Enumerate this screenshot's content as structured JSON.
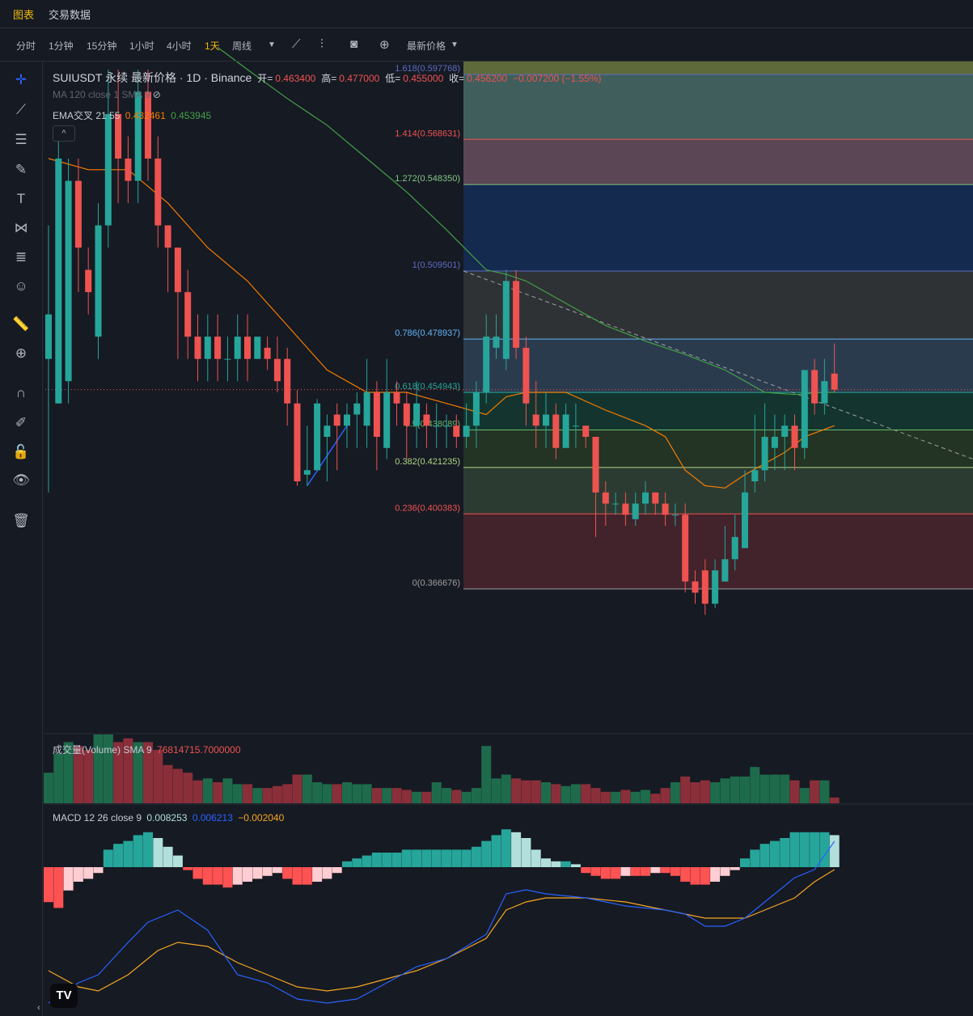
{
  "nav": {
    "tabs": [
      {
        "label": "图表",
        "active": true
      },
      {
        "label": "交易数据",
        "active": false
      }
    ]
  },
  "toolbar": {
    "timeframes": [
      "分时",
      "1分钟",
      "15分钟",
      "1小时",
      "4小时",
      "1天",
      "周线"
    ],
    "active_timeframe": "1天",
    "price_type": "最新价格"
  },
  "sidebar_icons": [
    "crosshair-icon",
    "trend-line-icon",
    "horizontal-lines-icon",
    "brush-icon",
    "text-icon",
    "pattern-icon",
    "fib-icon",
    "emoji-icon",
    "ruler-icon",
    "zoom-in-icon",
    "magnet-icon",
    "lock-drawing-icon",
    "unlock-icon",
    "eye-icon",
    "trash-icon"
  ],
  "legend": {
    "symbol": "SUIUSDT 永续 最新价格 · 1D · Binance",
    "open_label": "开=",
    "open": "0.463400",
    "high_label": "高=",
    "high": "0.477000",
    "low_label": "低=",
    "low": "0.455000",
    "close_label": "收=",
    "close": "0.456200",
    "change": "−0.007200 (−1.55%)",
    "ma_line": "MA 120 close 1 SMA 9",
    "ema_label": "EMA交叉 21 55",
    "ema_fast": "0.432461",
    "ema_slow": "0.453945",
    "volume_label": "成交量(Volume) SMA 9",
    "volume_value": "76814715.7000000",
    "macd_label": "MACD 12 26 close 9",
    "macd_v1": "0.008253",
    "macd_v2": "0.006213",
    "macd_v3": "−0.002040"
  },
  "colors": {
    "up": "#26a69a",
    "down": "#ef5350",
    "ema_fast": "#f57c00",
    "ema_slow": "#43a047",
    "macd": "#2962ff",
    "signal": "#f5a623"
  },
  "chart_data": {
    "type": "candlestick",
    "symbol": "SUIUSDT",
    "interval": "1D",
    "y_range": [
      0.33,
      0.61
    ],
    "fib_levels": [
      {
        "ratio": "1.618",
        "price": 0.597768,
        "label": "1.618(0.597768)",
        "color": "#5c6bc0",
        "fill": "#5f6a3a"
      },
      {
        "ratio": "1.414",
        "price": 0.568631,
        "label": "1.414(0.568631)",
        "color": "#ef5350",
        "fill": "#3f5e5c"
      },
      {
        "ratio": "1.272",
        "price": 0.54835,
        "label": "1.272(0.548350)",
        "color": "#81c784",
        "fill": "#5a4655"
      },
      {
        "ratio": "1",
        "price": 0.509501,
        "label": "1(0.509501)",
        "color": "#5c6bc0",
        "fill": "#142a4e"
      },
      {
        "ratio": "0.786",
        "price": 0.478937,
        "label": "0.786(0.478937)",
        "color": "#64b5f6",
        "fill": "#2f3235"
      },
      {
        "ratio": "0.618",
        "price": 0.454943,
        "label": "0.618(0.454943)",
        "color": "#26a69a",
        "fill": "#2b3b4e"
      },
      {
        "ratio": "0.5",
        "price": 0.438089,
        "label": "0.5(0.438089)",
        "color": "#66bb6a",
        "fill": "#14352f"
      },
      {
        "ratio": "0.382",
        "price": 0.421235,
        "label": "0.382(0.421235)",
        "color": "#aed581",
        "fill": "#233324"
      },
      {
        "ratio": "0.236",
        "price": 0.400383,
        "label": "0.236(0.400383)",
        "color": "#ef5350",
        "fill": "#2c3b32"
      },
      {
        "ratio": "0",
        "price": 0.366676,
        "label": "0(0.366676)",
        "color": "#9e9e9e",
        "fill": "#42232b"
      }
    ],
    "candles": [
      [
        0.47,
        0.49,
        0.41,
        0.53
      ],
      [
        0.45,
        0.56,
        0.45,
        0.57
      ],
      [
        0.46,
        0.55,
        0.45,
        0.56
      ],
      [
        0.55,
        0.52,
        0.5,
        0.56
      ],
      [
        0.51,
        0.5,
        0.49,
        0.52
      ],
      [
        0.48,
        0.53,
        0.47,
        0.54
      ],
      [
        0.53,
        0.58,
        0.52,
        0.6
      ],
      [
        0.58,
        0.56,
        0.54,
        0.6
      ],
      [
        0.56,
        0.55,
        0.54,
        0.57
      ],
      [
        0.55,
        0.59,
        0.54,
        0.6
      ],
      [
        0.59,
        0.56,
        0.55,
        0.6
      ],
      [
        0.56,
        0.53,
        0.52,
        0.57
      ],
      [
        0.53,
        0.52,
        0.5,
        0.53
      ],
      [
        0.52,
        0.5,
        0.47,
        0.52
      ],
      [
        0.5,
        0.48,
        0.47,
        0.51
      ],
      [
        0.48,
        0.47,
        0.46,
        0.49
      ],
      [
        0.47,
        0.48,
        0.46,
        0.49
      ],
      [
        0.48,
        0.47,
        0.46,
        0.49
      ],
      [
        0.47,
        0.47,
        0.46,
        0.48
      ],
      [
        0.47,
        0.48,
        0.46,
        0.49
      ],
      [
        0.48,
        0.47,
        0.46,
        0.49
      ],
      [
        0.47,
        0.48,
        0.47,
        0.48
      ],
      [
        0.475,
        0.47,
        0.465,
        0.48
      ],
      [
        0.47,
        0.46,
        0.455,
        0.48
      ],
      [
        0.47,
        0.45,
        0.44,
        0.475
      ],
      [
        0.45,
        0.415,
        0.413,
        0.456
      ],
      [
        0.418,
        0.42,
        0.413,
        0.44
      ],
      [
        0.42,
        0.45,
        0.42,
        0.452
      ],
      [
        0.435,
        0.44,
        0.415,
        0.445
      ],
      [
        0.445,
        0.44,
        0.42,
        0.45
      ],
      [
        0.44,
        0.445,
        0.43,
        0.45
      ],
      [
        0.445,
        0.45,
        0.43,
        0.455
      ],
      [
        0.44,
        0.455,
        0.43,
        0.47
      ],
      [
        0.455,
        0.435,
        0.42,
        0.46
      ],
      [
        0.43,
        0.455,
        0.425,
        0.47
      ],
      [
        0.455,
        0.45,
        0.44,
        0.46
      ],
      [
        0.45,
        0.44,
        0.425,
        0.455
      ],
      [
        0.44,
        0.45,
        0.43,
        0.46
      ],
      [
        0.445,
        0.44,
        0.43,
        0.45
      ],
      [
        0.44,
        0.44,
        0.43,
        0.45
      ],
      [
        0.44,
        0.44,
        0.43,
        0.445
      ],
      [
        0.44,
        0.435,
        0.43,
        0.445
      ],
      [
        0.435,
        0.44,
        0.43,
        0.45
      ],
      [
        0.44,
        0.455,
        0.43,
        0.46
      ],
      [
        0.455,
        0.48,
        0.45,
        0.49
      ],
      [
        0.475,
        0.48,
        0.47,
        0.49
      ],
      [
        0.47,
        0.505,
        0.465,
        0.51
      ],
      [
        0.505,
        0.475,
        0.47,
        0.51
      ],
      [
        0.475,
        0.45,
        0.44,
        0.48
      ],
      [
        0.445,
        0.44,
        0.43,
        0.46
      ],
      [
        0.44,
        0.445,
        0.43,
        0.455
      ],
      [
        0.445,
        0.43,
        0.425,
        0.45
      ],
      [
        0.43,
        0.445,
        0.43,
        0.45
      ],
      [
        0.44,
        0.44,
        0.43,
        0.45
      ],
      [
        0.44,
        0.435,
        0.43,
        0.44
      ],
      [
        0.435,
        0.41,
        0.39,
        0.435
      ],
      [
        0.41,
        0.405,
        0.395,
        0.415
      ],
      [
        0.405,
        0.405,
        0.4,
        0.41
      ],
      [
        0.405,
        0.4,
        0.395,
        0.41
      ],
      [
        0.398,
        0.405,
        0.395,
        0.41
      ],
      [
        0.405,
        0.41,
        0.4,
        0.415
      ],
      [
        0.41,
        0.405,
        0.4,
        0.41
      ],
      [
        0.405,
        0.4,
        0.395,
        0.41
      ],
      [
        0.4,
        0.4,
        0.395,
        0.405
      ],
      [
        0.4,
        0.37,
        0.365,
        0.405
      ],
      [
        0.37,
        0.365,
        0.36,
        0.375
      ],
      [
        0.375,
        0.36,
        0.355,
        0.38
      ],
      [
        0.36,
        0.375,
        0.358,
        0.38
      ],
      [
        0.37,
        0.38,
        0.37,
        0.395
      ],
      [
        0.38,
        0.39,
        0.375,
        0.4
      ],
      [
        0.385,
        0.41,
        0.385,
        0.42
      ],
      [
        0.415,
        0.42,
        0.41,
        0.445
      ],
      [
        0.42,
        0.435,
        0.415,
        0.45
      ],
      [
        0.43,
        0.435,
        0.42,
        0.445
      ],
      [
        0.435,
        0.44,
        0.42,
        0.445
      ],
      [
        0.44,
        0.43,
        0.42,
        0.445
      ],
      [
        0.43,
        0.465,
        0.425,
        0.465
      ],
      [
        0.465,
        0.45,
        0.445,
        0.47
      ],
      [
        0.45,
        0.46,
        0.445,
        0.47
      ],
      [
        0.4634,
        0.4562,
        0.455,
        0.477
      ]
    ],
    "ema21": [
      [
        0,
        0.56
      ],
      [
        4,
        0.555
      ],
      [
        8,
        0.555
      ],
      [
        12,
        0.54
      ],
      [
        16,
        0.52
      ],
      [
        20,
        0.505
      ],
      [
        24,
        0.485
      ],
      [
        28,
        0.465
      ],
      [
        32,
        0.455
      ],
      [
        36,
        0.455
      ],
      [
        40,
        0.45
      ],
      [
        44,
        0.445
      ],
      [
        46,
        0.453
      ],
      [
        48,
        0.455
      ],
      [
        52,
        0.455
      ],
      [
        56,
        0.447
      ],
      [
        60,
        0.44
      ],
      [
        62,
        0.435
      ],
      [
        64,
        0.42
      ],
      [
        66,
        0.413
      ],
      [
        68,
        0.412
      ],
      [
        70,
        0.418
      ],
      [
        72,
        0.423
      ],
      [
        74,
        0.428
      ],
      [
        76,
        0.435
      ],
      [
        79,
        0.44
      ]
    ],
    "ema55": [
      [
        17,
        0.61
      ],
      [
        20,
        0.6
      ],
      [
        24,
        0.587
      ],
      [
        28,
        0.575
      ],
      [
        32,
        0.56
      ],
      [
        36,
        0.545
      ],
      [
        40,
        0.528
      ],
      [
        44,
        0.51
      ],
      [
        46,
        0.508
      ],
      [
        48,
        0.505
      ],
      [
        52,
        0.495
      ],
      [
        56,
        0.485
      ],
      [
        60,
        0.478
      ],
      [
        64,
        0.472
      ],
      [
        68,
        0.465
      ],
      [
        70,
        0.46
      ],
      [
        72,
        0.455
      ],
      [
        75,
        0.454
      ],
      [
        78,
        0.455
      ],
      [
        79,
        0.455
      ]
    ],
    "volume": [
      1.6,
      2.6,
      3.2,
      3.0,
      2.8,
      3.6,
      3.6,
      3.2,
      3.4,
      3.2,
      3.2,
      2.8,
      2.0,
      1.8,
      1.6,
      1.2,
      1.3,
      1.1,
      1.3,
      1.0,
      1.0,
      0.8,
      0.8,
      0.9,
      1.0,
      1.5,
      1.5,
      1.1,
      1.0,
      1.0,
      1.1,
      1.0,
      1.0,
      0.8,
      0.8,
      0.8,
      0.7,
      0.6,
      0.6,
      1.1,
      0.8,
      0.7,
      0.6,
      0.8,
      3.0,
      1.3,
      1.5,
      1.3,
      1.2,
      1.2,
      1.1,
      1.0,
      0.9,
      1.0,
      1.0,
      0.8,
      0.6,
      0.6,
      0.7,
      0.6,
      0.7,
      0.5,
      0.8,
      1.1,
      1.4,
      1.1,
      1.2,
      1.1,
      1.3,
      1.4,
      1.4,
      1.9,
      1.5,
      1.5,
      1.5,
      1.2,
      0.8,
      1.2,
      1.2,
      0.3
    ],
    "macd_hist": [
      -0.012,
      -0.014,
      -0.008,
      -0.005,
      -0.004,
      -0.002,
      0.006,
      0.008,
      0.009,
      0.011,
      0.012,
      0.01,
      0.007,
      0.004,
      -0.001,
      -0.004,
      -0.006,
      -0.006,
      -0.007,
      -0.006,
      -0.005,
      -0.004,
      -0.003,
      -0.002,
      -0.004,
      -0.006,
      -0.006,
      -0.005,
      -0.004,
      -0.002,
      0.002,
      0.003,
      0.004,
      0.005,
      0.005,
      0.005,
      0.006,
      0.006,
      0.006,
      0.006,
      0.006,
      0.006,
      0.006,
      0.007,
      0.009,
      0.011,
      0.013,
      0.012,
      0.01,
      0.006,
      0.003,
      0.002,
      0.002,
      0.001,
      -0.002,
      -0.003,
      -0.004,
      -0.004,
      -0.003,
      -0.003,
      -0.003,
      -0.002,
      -0.002,
      -0.003,
      -0.005,
      -0.006,
      -0.006,
      -0.005,
      -0.003,
      -0.001,
      0.003,
      0.006,
      0.008,
      0.009,
      0.01,
      0.012,
      0.012,
      0.012,
      0.012,
      0.011
    ],
    "macd_line": [
      [
        0,
        -0.035
      ],
      [
        3,
        -0.03
      ],
      [
        5,
        -0.028
      ],
      [
        8,
        -0.02
      ],
      [
        10,
        -0.015
      ],
      [
        13,
        -0.012
      ],
      [
        16,
        -0.017
      ],
      [
        19,
        -0.028
      ],
      [
        22,
        -0.03
      ],
      [
        25,
        -0.034
      ],
      [
        28,
        -0.035
      ],
      [
        31,
        -0.034
      ],
      [
        34,
        -0.03
      ],
      [
        37,
        -0.026
      ],
      [
        40,
        -0.024
      ],
      [
        44,
        -0.018
      ],
      [
        46,
        -0.008
      ],
      [
        48,
        -0.007
      ],
      [
        50,
        -0.008
      ],
      [
        54,
        -0.009
      ],
      [
        58,
        -0.011
      ],
      [
        62,
        -0.012
      ],
      [
        64,
        -0.013
      ],
      [
        66,
        -0.016
      ],
      [
        68,
        -0.016
      ],
      [
        70,
        -0.014
      ],
      [
        72,
        -0.01
      ],
      [
        75,
        -0.004
      ],
      [
        77,
        -0.002
      ],
      [
        79,
        0.005
      ]
    ],
    "signal_line": [
      [
        0,
        -0.027
      ],
      [
        3,
        -0.031
      ],
      [
        5,
        -0.032
      ],
      [
        8,
        -0.028
      ],
      [
        11,
        -0.022
      ],
      [
        13,
        -0.02
      ],
      [
        16,
        -0.021
      ],
      [
        19,
        -0.025
      ],
      [
        22,
        -0.028
      ],
      [
        25,
        -0.031
      ],
      [
        28,
        -0.032
      ],
      [
        31,
        -0.031
      ],
      [
        34,
        -0.029
      ],
      [
        37,
        -0.027
      ],
      [
        40,
        -0.024
      ],
      [
        44,
        -0.019
      ],
      [
        46,
        -0.012
      ],
      [
        48,
        -0.01
      ],
      [
        50,
        -0.009
      ],
      [
        54,
        -0.009
      ],
      [
        58,
        -0.01
      ],
      [
        62,
        -0.012
      ],
      [
        66,
        -0.014
      ],
      [
        68,
        -0.014
      ],
      [
        70,
        -0.014
      ],
      [
        72,
        -0.012
      ],
      [
        75,
        -0.009
      ],
      [
        77,
        -0.005
      ],
      [
        79,
        -0.002
      ]
    ]
  }
}
